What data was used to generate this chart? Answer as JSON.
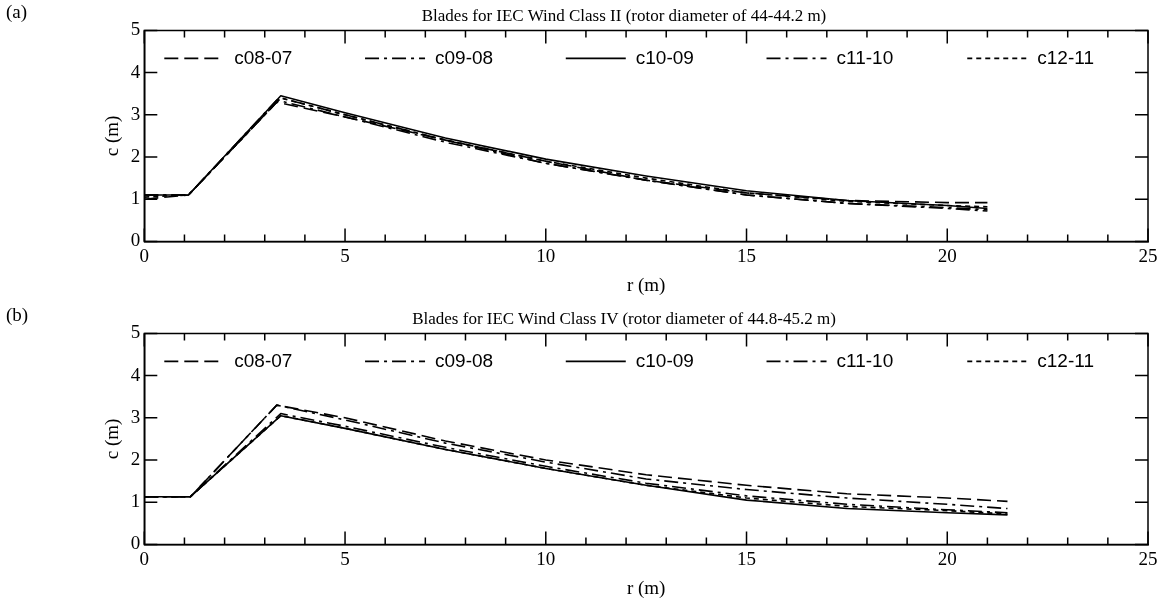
{
  "chart_data": [
    {
      "type": "line",
      "title": "Blades for IEC Wind Class II (rotor diameter of 44-44.2 m)",
      "xlabel": "r (m)",
      "ylabel": "c (m)",
      "annotations": [
        "(a)"
      ],
      "legend": "top",
      "marker": "none",
      "xlim": [
        0,
        25
      ],
      "xticks": [
        0,
        {
          "value": 1,
          "label": null
        },
        {
          "value": 2,
          "label": null
        },
        {
          "value": 3,
          "label": null
        },
        {
          "value": 4,
          "label": null
        },
        5,
        {
          "value": 6,
          "label": null
        },
        {
          "value": 7,
          "label": null
        },
        {
          "value": 8,
          "label": null
        },
        {
          "value": 9,
          "label": null
        },
        10,
        {
          "value": 11,
          "label": null
        },
        {
          "value": 12,
          "label": null
        },
        {
          "value": 13,
          "label": null
        },
        {
          "value": 14,
          "label": null
        },
        15,
        {
          "value": 16,
          "label": null
        },
        {
          "value": 17,
          "label": null
        },
        {
          "value": 18,
          "label": null
        },
        {
          "value": 19,
          "label": null
        },
        20,
        {
          "value": 21,
          "label": null
        },
        {
          "value": 22,
          "label": null
        },
        {
          "value": 23,
          "label": null
        },
        {
          "value": 24,
          "label": null
        },
        25
      ],
      "ylim": [
        0,
        5
      ],
      "yticks": [
        0,
        1,
        2,
        3,
        4,
        5
      ],
      "series": [
        {
          "name": "c08-07",
          "color": "#000000",
          "line_style": "dashed",
          "x": [
            0,
            1.1,
            3.3,
            5,
            7.5,
            10,
            12.5,
            15,
            17.5,
            20,
            21
          ],
          "values": [
            1.0,
            1.1,
            3.3,
            2.95,
            2.4,
            1.9,
            1.45,
            1.15,
            0.97,
            0.92,
            0.92
          ]
        },
        {
          "name": "c09-08",
          "color": "#000000",
          "line_style": "dashed",
          "x": [
            0,
            1.1,
            3.4,
            5,
            7.5,
            10,
            12.5,
            15,
            17.5,
            20,
            21
          ],
          "values": [
            1.1,
            1.1,
            3.4,
            3.0,
            2.4,
            1.85,
            1.45,
            1.1,
            0.9,
            0.78,
            0.72
          ]
        },
        {
          "name": "c10-09",
          "color": "#000000",
          "line_style": "solid",
          "x": [
            0,
            1.1,
            3.4,
            5,
            7.5,
            10,
            12.5,
            15,
            17.5,
            20,
            21
          ],
          "values": [
            1.1,
            1.1,
            3.45,
            3.05,
            2.45,
            1.95,
            1.55,
            1.2,
            0.97,
            0.85,
            0.78
          ]
        },
        {
          "name": "c11-10",
          "color": "#000000",
          "line_style": "dashed",
          "x": [
            0,
            1.1,
            3.3,
            5,
            7.5,
            10,
            12.5,
            15,
            17.5,
            20,
            21
          ],
          "values": [
            1.1,
            1.1,
            3.35,
            2.95,
            2.35,
            1.85,
            1.45,
            1.1,
            0.9,
            0.8,
            0.75
          ]
        },
        {
          "name": "c12-11",
          "color": "#000000",
          "line_style": "dotted",
          "x": [
            0,
            1.1,
            3.4,
            5,
            7.5,
            10,
            12.5,
            15,
            17.5,
            20,
            21
          ],
          "values": [
            1.05,
            1.1,
            3.4,
            3.0,
            2.4,
            1.9,
            1.5,
            1.15,
            0.95,
            0.85,
            0.82
          ]
        }
      ]
    },
    {
      "type": "line",
      "title": "Blades for IEC Wind Class IV (rotor diameter of 44.8-45.2 m)",
      "xlabel": "r (m)",
      "ylabel": "c (m)",
      "annotations": [
        "(b)"
      ],
      "legend": "top",
      "marker": "none",
      "xlim": [
        0,
        25
      ],
      "xticks": [
        0,
        {
          "value": 1,
          "label": null
        },
        {
          "value": 2,
          "label": null
        },
        {
          "value": 3,
          "label": null
        },
        {
          "value": 4,
          "label": null
        },
        5,
        {
          "value": 6,
          "label": null
        },
        {
          "value": 7,
          "label": null
        },
        {
          "value": 8,
          "label": null
        },
        {
          "value": 9,
          "label": null
        },
        10,
        {
          "value": 11,
          "label": null
        },
        {
          "value": 12,
          "label": null
        },
        {
          "value": 13,
          "label": null
        },
        {
          "value": 14,
          "label": null
        },
        15,
        {
          "value": 16,
          "label": null
        },
        {
          "value": 17,
          "label": null
        },
        {
          "value": 18,
          "label": null
        },
        {
          "value": 19,
          "label": null
        },
        20,
        {
          "value": 21,
          "label": null
        },
        {
          "value": 22,
          "label": null
        },
        {
          "value": 23,
          "label": null
        },
        {
          "value": 24,
          "label": null
        },
        25
      ],
      "ylim": [
        0,
        5
      ],
      "yticks": [
        0,
        1,
        2,
        3,
        4,
        5
      ],
      "series": [
        {
          "name": "c08-07",
          "color": "#000000",
          "line_style": "dashed",
          "x": [
            0,
            1.15,
            3.3,
            5,
            7.5,
            10,
            12.5,
            15,
            17.5,
            20,
            21.5
          ],
          "values": [
            1.13,
            1.13,
            3.3,
            3.0,
            2.45,
            2.0,
            1.65,
            1.4,
            1.2,
            1.1,
            1.02
          ]
        },
        {
          "name": "c09-08",
          "color": "#000000",
          "line_style": "dashed",
          "x": [
            0,
            1.15,
            3.3,
            5,
            7.5,
            10,
            12.5,
            15,
            17.5,
            20,
            21.5
          ],
          "values": [
            1.13,
            1.13,
            3.3,
            2.95,
            2.4,
            1.95,
            1.55,
            1.3,
            1.1,
            0.95,
            0.85
          ]
        },
        {
          "name": "c10-09",
          "color": "#000000",
          "line_style": "solid",
          "x": [
            0,
            1.15,
            3.4,
            5,
            7.5,
            10,
            12.5,
            15,
            17.5,
            20,
            21.5
          ],
          "values": [
            1.13,
            1.13,
            3.05,
            2.75,
            2.25,
            1.8,
            1.4,
            1.05,
            0.85,
            0.75,
            0.7
          ]
        },
        {
          "name": "c11-10",
          "color": "#000000",
          "line_style": "dashed",
          "x": [
            0,
            1.15,
            3.4,
            5,
            7.5,
            10,
            12.5,
            15,
            17.5,
            20,
            21.5
          ],
          "values": [
            1.13,
            1.13,
            3.1,
            2.8,
            2.3,
            1.85,
            1.45,
            1.15,
            0.95,
            0.82,
            0.75
          ]
        },
        {
          "name": "c12-11",
          "color": "#000000",
          "line_style": "dotted",
          "x": [
            0,
            1.15,
            3.4,
            5,
            7.5,
            10,
            12.5,
            15,
            17.5,
            20,
            21.5
          ],
          "values": [
            1.13,
            1.13,
            3.05,
            2.75,
            2.25,
            1.8,
            1.4,
            1.1,
            0.9,
            0.8,
            0.72
          ]
        }
      ]
    }
  ]
}
